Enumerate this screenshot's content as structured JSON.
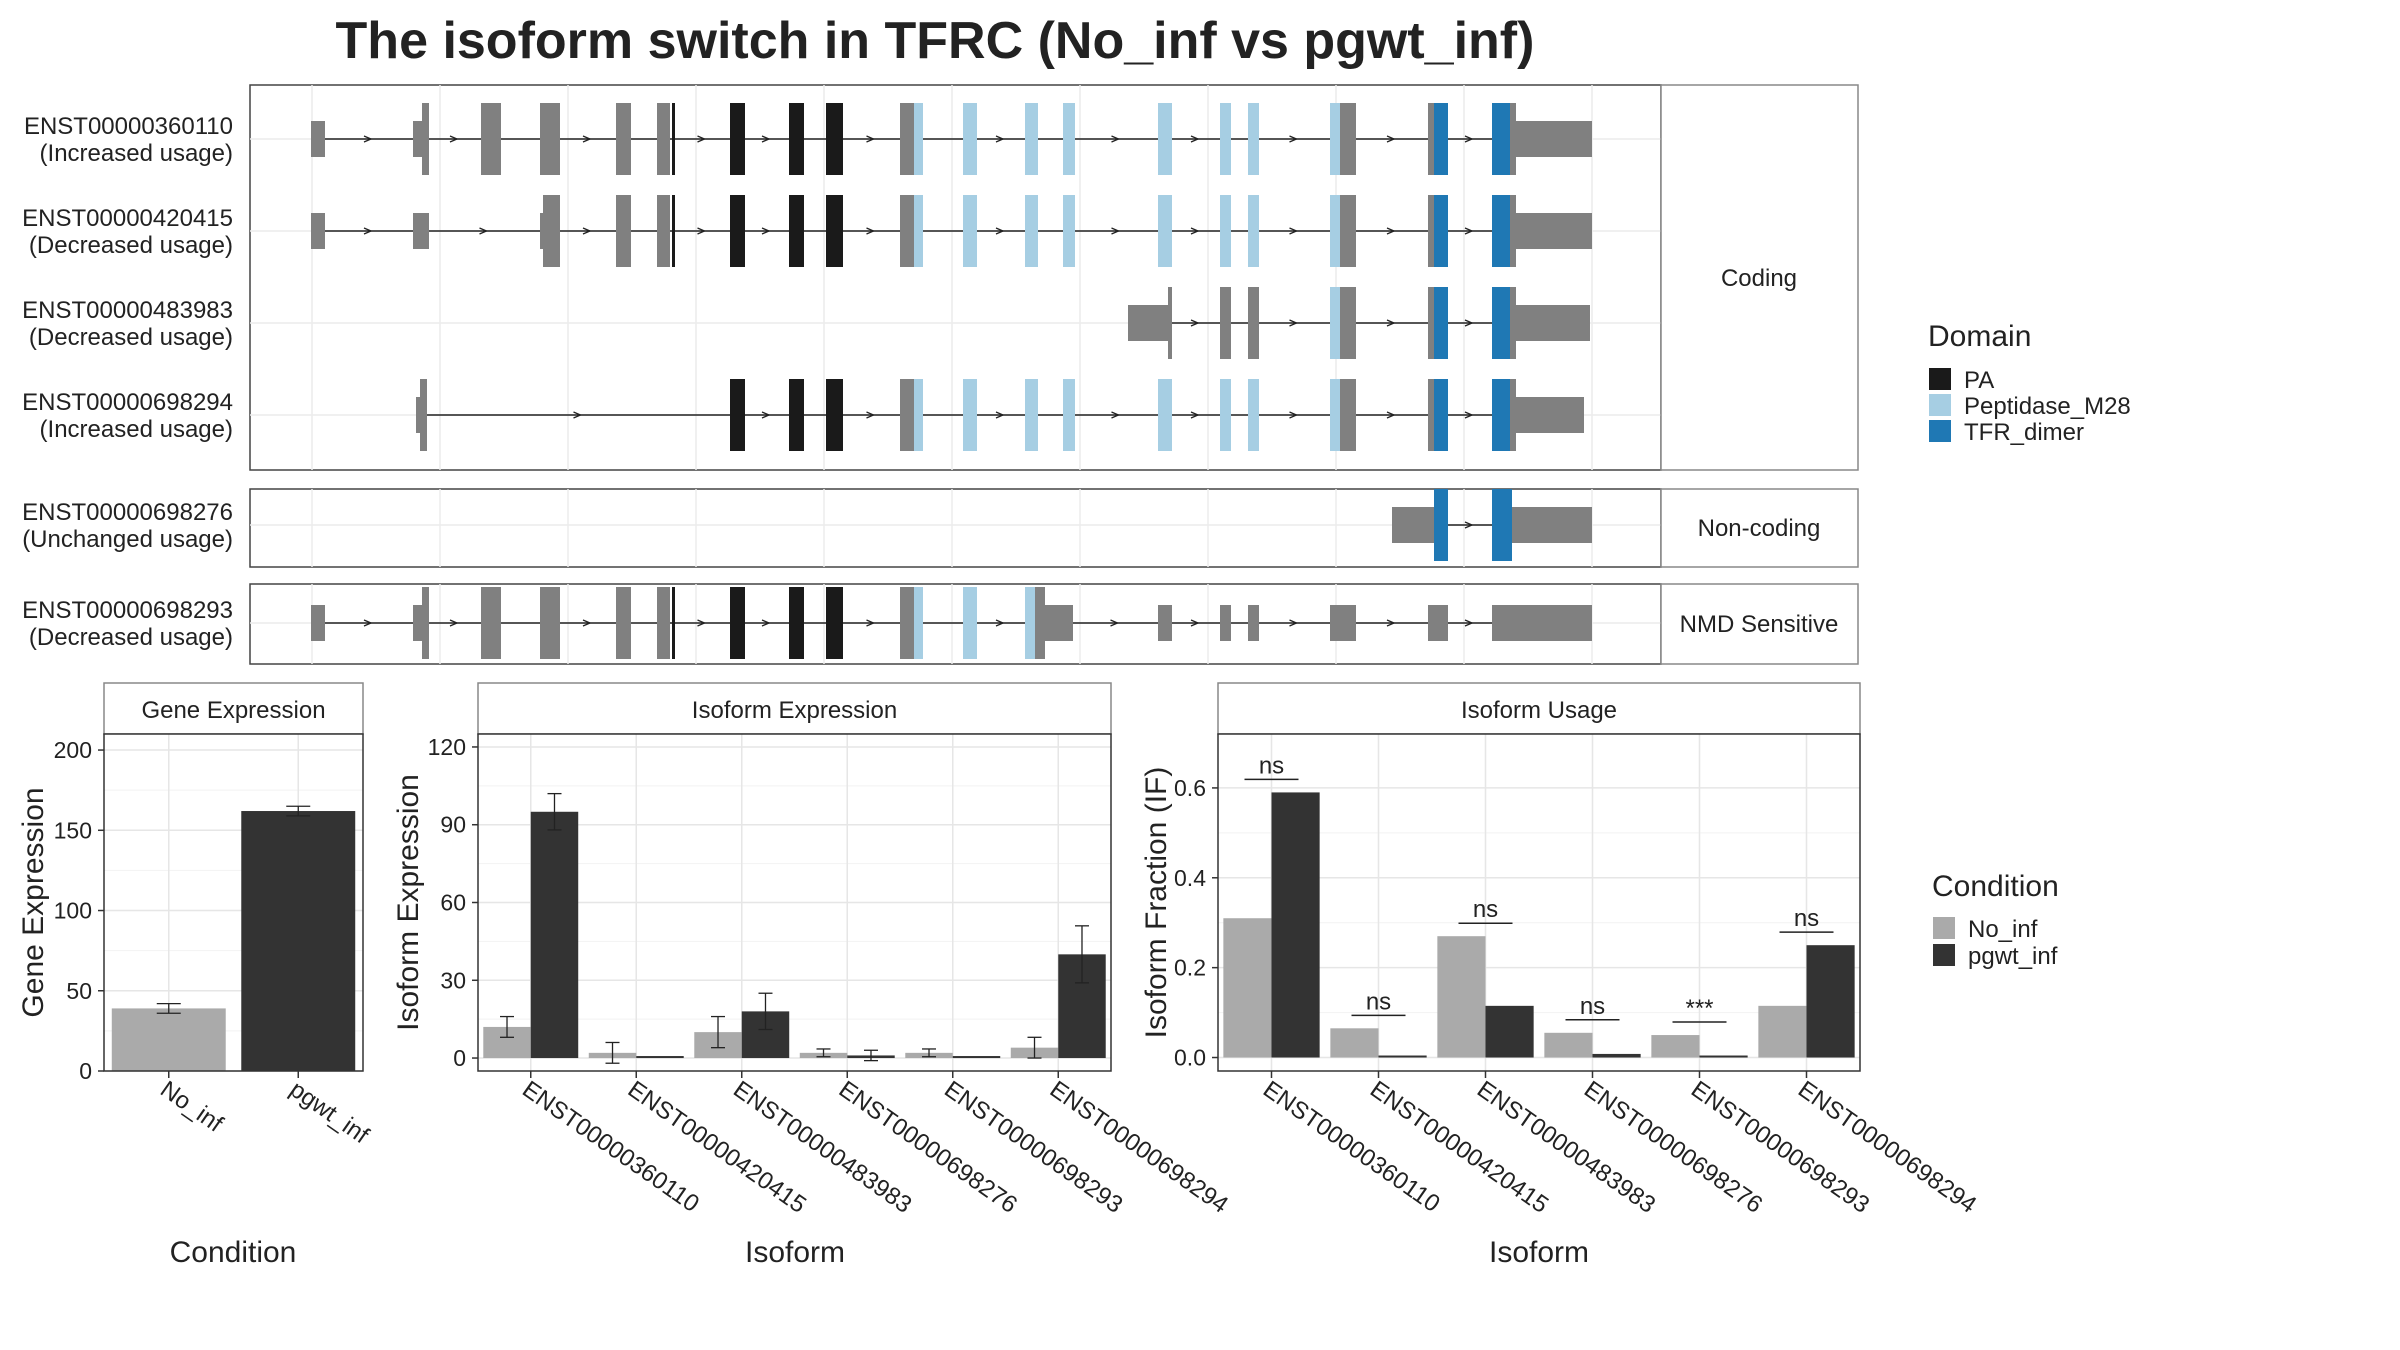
{
  "title": "The isoform switch in TFRC (No_inf vs pgwt_inf)",
  "transcripts": {
    "groups": [
      {
        "label": "Coding",
        "isoforms": [
          {
            "id": "ENST00000360110",
            "usage": "(Increased usage)"
          },
          {
            "id": "ENST00000420415",
            "usage": "(Decreased usage)"
          },
          {
            "id": "ENST00000483983",
            "usage": "(Decreased usage)"
          },
          {
            "id": "ENST00000698294",
            "usage": "(Increased usage)"
          }
        ]
      },
      {
        "label": "Non-coding",
        "isoforms": [
          {
            "id": "ENST00000698276",
            "usage": "(Unchanged usage)"
          }
        ]
      },
      {
        "label": "NMD Sensitive",
        "isoforms": [
          {
            "id": "ENST00000698293",
            "usage": "(Decreased usage)"
          }
        ]
      }
    ]
  },
  "domain_legend": {
    "title": "Domain",
    "items": [
      {
        "label": "PA",
        "color": "#1a1a1a"
      },
      {
        "label": "Peptidase_M28",
        "color": "#a6cee3"
      },
      {
        "label": "TFR_dimer",
        "color": "#1f78b4"
      }
    ]
  },
  "condition_legend": {
    "title": "Condition",
    "items": [
      {
        "label": "No_inf",
        "color": "#aaaaaa"
      },
      {
        "label": "pgwt_inf",
        "color": "#333333"
      }
    ]
  },
  "chart_data": [
    {
      "type": "bar",
      "title": "Gene Expression",
      "xlabel": "Condition",
      "ylabel": "Gene Expression",
      "categories": [
        "No_inf",
        "pgwt_inf"
      ],
      "values": [
        39,
        162
      ],
      "errors": [
        3,
        3
      ],
      "colors": [
        "#aaaaaa",
        "#333333"
      ],
      "ylim": [
        0,
        210
      ],
      "yticks": [
        0,
        50,
        100,
        150,
        200
      ]
    },
    {
      "type": "bar",
      "title": "Isoform Expression",
      "xlabel": "Isoform",
      "ylabel": "Isoform Expression",
      "categories": [
        "ENST00000360110",
        "ENST00000420415",
        "ENST00000483983",
        "ENST00000698276",
        "ENST00000698293",
        "ENST00000698294"
      ],
      "series": [
        {
          "name": "No_inf",
          "values": [
            12,
            2,
            10,
            2,
            2,
            4
          ],
          "errors": [
            4,
            4,
            6,
            1.5,
            1.5,
            4
          ]
        },
        {
          "name": "pgwt_inf",
          "values": [
            95,
            0,
            18,
            1,
            0,
            40
          ],
          "errors": [
            7,
            0,
            7,
            2,
            0,
            11
          ]
        }
      ],
      "ylim": [
        -5,
        125
      ],
      "yticks": [
        0,
        30,
        60,
        90,
        120
      ]
    },
    {
      "type": "bar",
      "title": "Isoform Usage",
      "xlabel": "Isoform",
      "ylabel": "Isoform Fraction (IF)",
      "categories": [
        "ENST00000360110",
        "ENST00000420415",
        "ENST00000483983",
        "ENST00000698276",
        "ENST00000698293",
        "ENST00000698294"
      ],
      "series": [
        {
          "name": "No_inf",
          "values": [
            0.31,
            0.065,
            0.27,
            0.055,
            0.05,
            0.115
          ]
        },
        {
          "name": "pgwt_inf",
          "values": [
            0.59,
            0.0,
            0.115,
            0.008,
            0.0,
            0.25
          ]
        }
      ],
      "significance": [
        "ns",
        "ns",
        "ns",
        "ns",
        "***",
        "ns"
      ],
      "ylim": [
        -0.03,
        0.72
      ],
      "yticks": [
        0.0,
        0.2,
        0.4,
        0.6
      ]
    }
  ]
}
